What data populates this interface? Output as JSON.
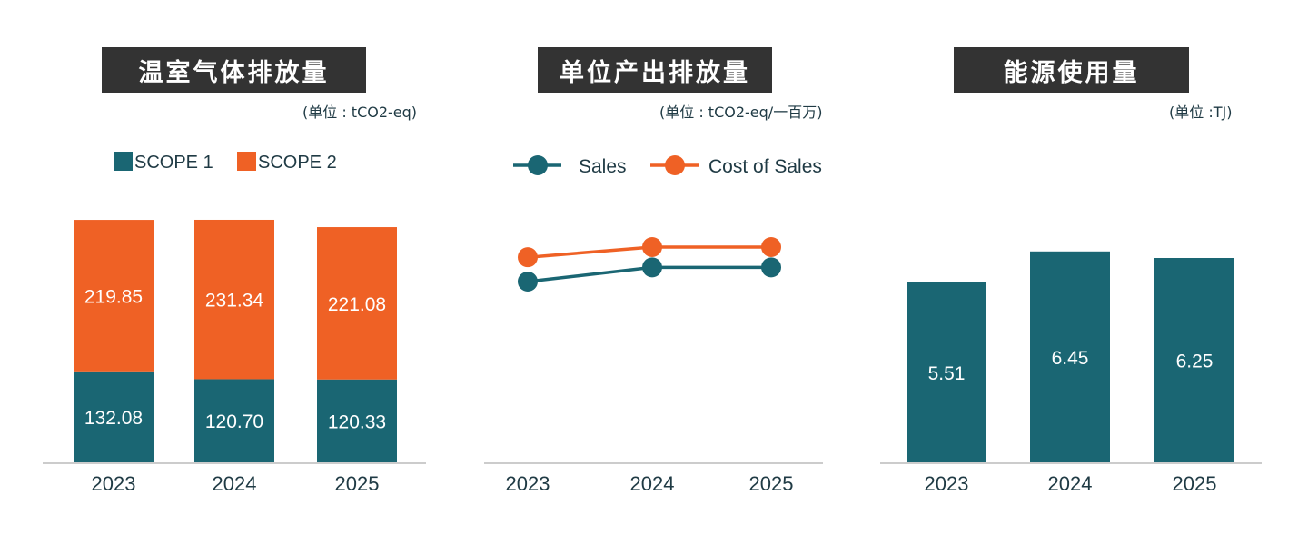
{
  "colors": {
    "teal": "#1a6673",
    "orange": "#ef6125",
    "title_bg": "#333333",
    "axis": "#bbbbbb",
    "text": "#1f3a44"
  },
  "chart_data": [
    {
      "type": "bar",
      "stacked": true,
      "title": "温室气体排放量",
      "unit": "(单位 : tCO2-eq)",
      "categories": [
        "2023",
        "2024",
        "2025"
      ],
      "series": [
        {
          "name": "SCOPE 1",
          "color": "#1a6673",
          "values": [
            132.08,
            120.7,
            120.33
          ],
          "labels": [
            "132.08",
            "120.70",
            "120.33"
          ]
        },
        {
          "name": "SCOPE 2",
          "color": "#ef6125",
          "values": [
            219.85,
            231.34,
            221.08
          ],
          "labels": [
            "219.85",
            "231.34",
            "221.08"
          ]
        }
      ],
      "legend": "top-left",
      "grid": false
    },
    {
      "type": "line",
      "title": "单位产出排放量",
      "unit": "(单位 : tCO2-eq/一百万)",
      "categories": [
        "2023",
        "2024",
        "2025"
      ],
      "series": [
        {
          "name": "Sales",
          "color": "#1a6673",
          "values": [
            0.28,
            0.315,
            0.315
          ]
        },
        {
          "name": "Cost of Sales",
          "color": "#ef6125",
          "values": [
            0.34,
            0.365,
            0.365
          ]
        }
      ],
      "legend": "top",
      "grid": false
    },
    {
      "type": "bar",
      "title": "能源使用量",
      "unit": "(单位 :TJ)",
      "categories": [
        "2023",
        "2024",
        "2025"
      ],
      "series": [
        {
          "color": "#1a6673",
          "values": [
            5.51,
            6.45,
            6.25
          ],
          "labels": [
            "5.51",
            "6.45",
            "6.25"
          ]
        }
      ],
      "grid": false
    }
  ]
}
